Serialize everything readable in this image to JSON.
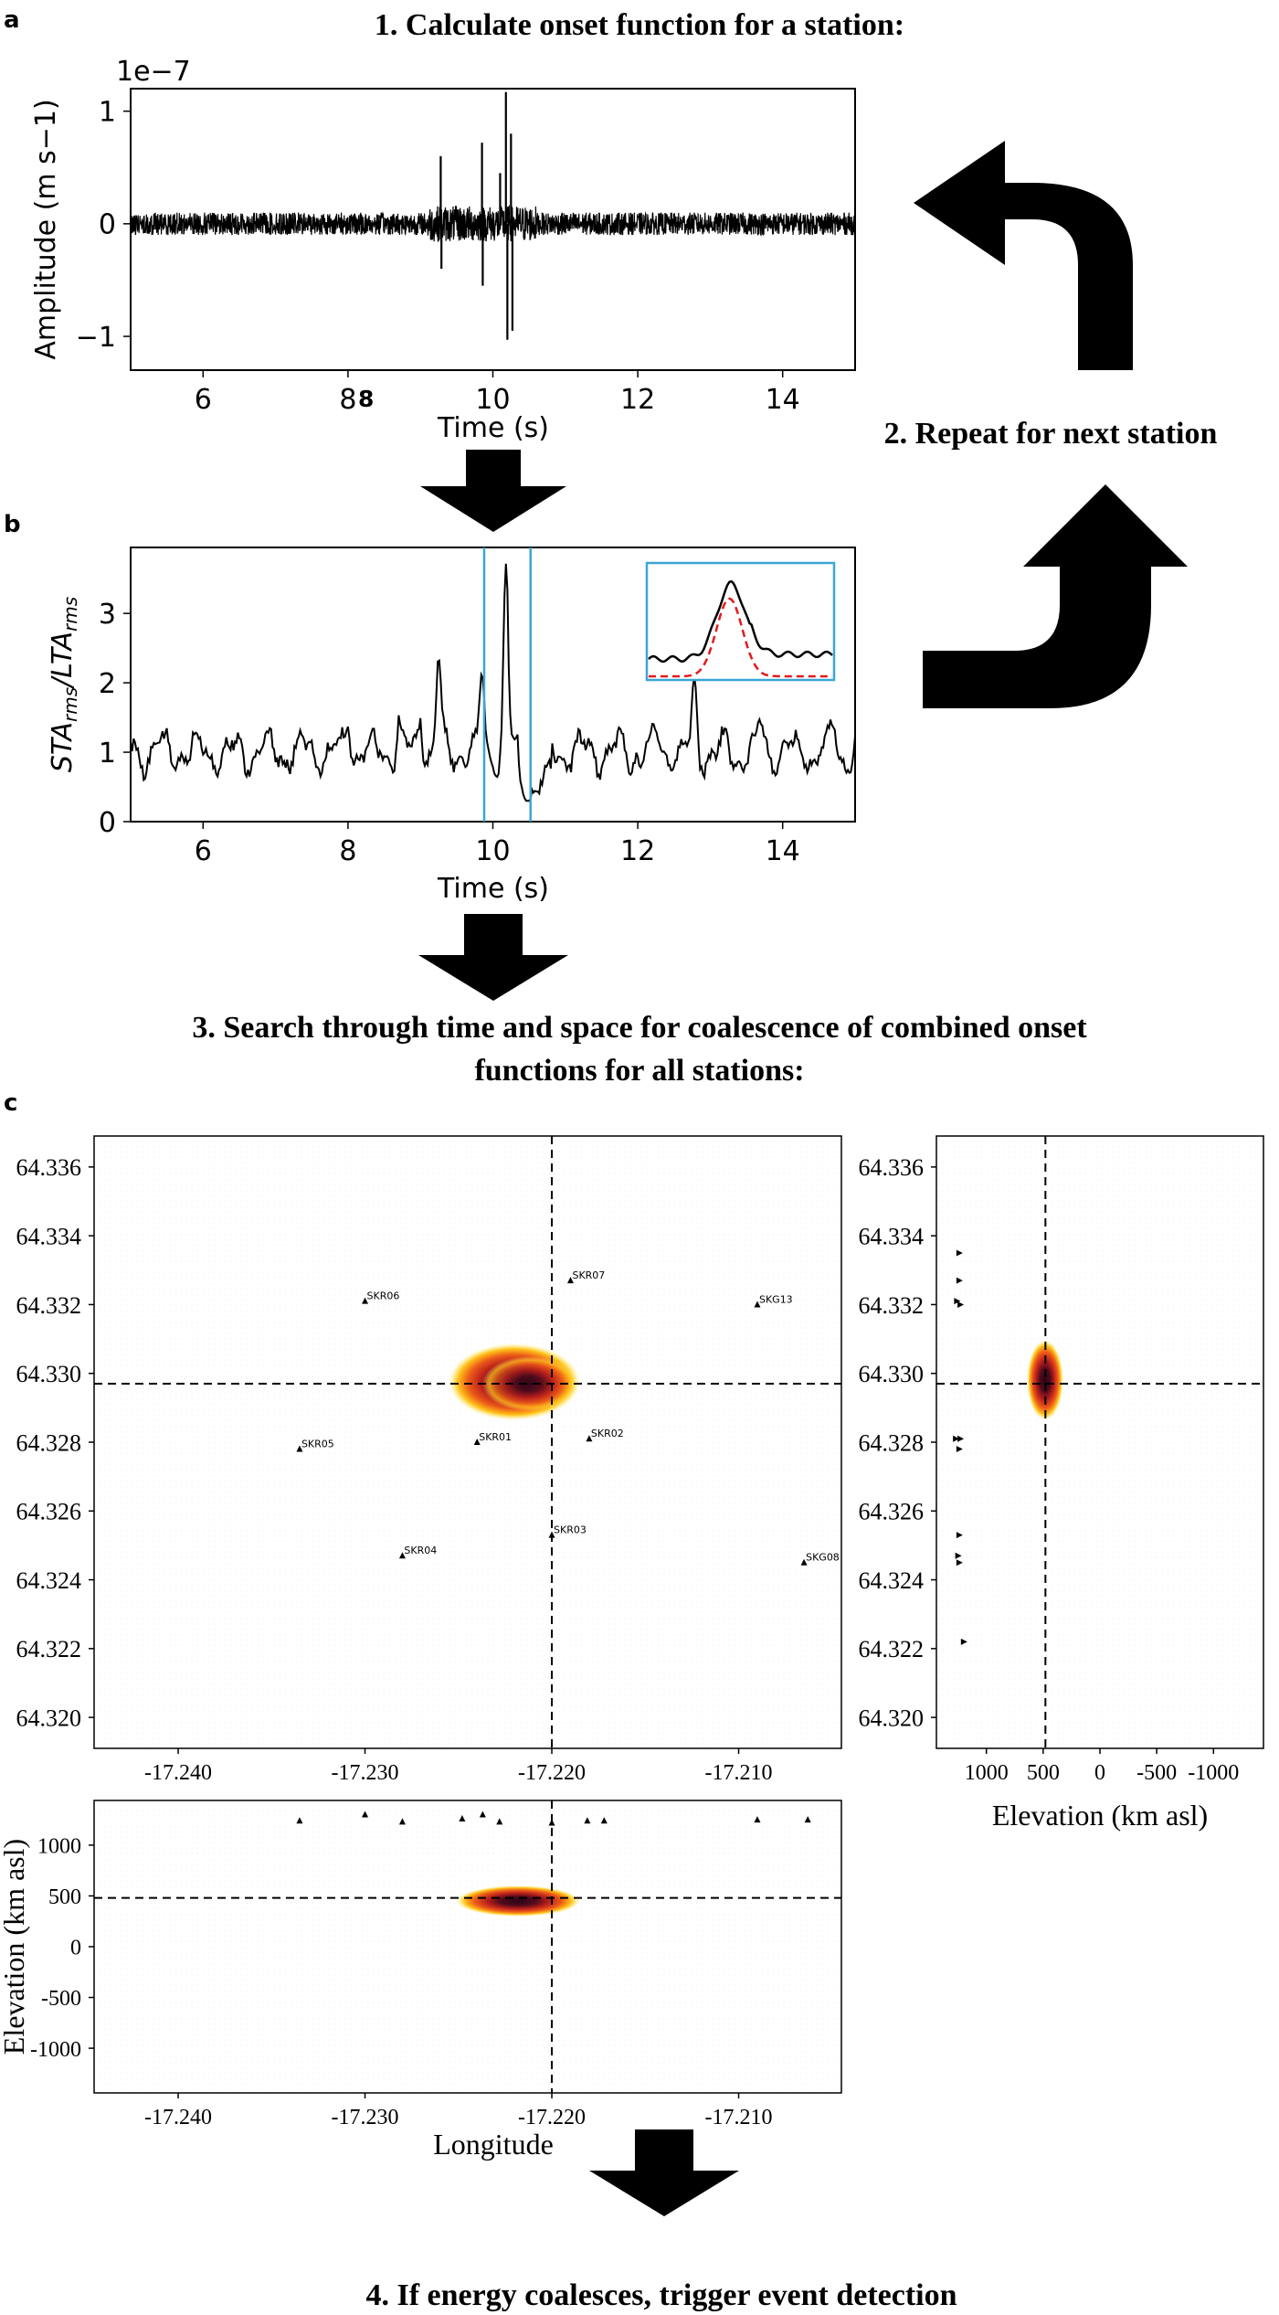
{
  "panel_labels": {
    "a": "a",
    "b": "b",
    "c": "c"
  },
  "steps": {
    "step1": "1.   Calculate onset function for a station:",
    "step2": "2. Repeat for next station",
    "step3_line1": "3. Search through time and space for coalescence of combined onset",
    "step3_line2": "functions for all stations:",
    "step4": "4. If energy coalesces, trigger event detection"
  },
  "colors": {
    "trace": "#000000",
    "window_lines": "#3ba6d6",
    "fit_curve": "#e31a1c",
    "heat_outer": "#ffe419",
    "heat_mid": "#d9341c",
    "heat_core": "#300818",
    "arrows": "#000000"
  },
  "chart_data": [
    {
      "id": "a",
      "type": "line",
      "title": "",
      "xlabel": "Time (s)",
      "ylabel": "Amplitude (m s−1)",
      "scale_label": "1e−7",
      "stray_label": "8",
      "xlim": [
        5,
        15
      ],
      "ylim": [
        -1.3,
        1.2
      ],
      "xticks": [
        "6",
        "8",
        "10",
        "12",
        "14"
      ],
      "xtick_values": [
        6,
        8,
        10,
        12,
        14
      ],
      "yticks": [
        "−1",
        "0",
        "1"
      ],
      "ytick_values": [
        -1,
        0,
        1
      ],
      "noise_amplitude": 0.1,
      "peaks": [
        {
          "x": 9.28,
          "y": 0.6
        },
        {
          "x": 9.29,
          "y": -0.4
        },
        {
          "x": 9.85,
          "y": 0.72
        },
        {
          "x": 9.86,
          "y": -0.55
        },
        {
          "x": 10.1,
          "y": 0.45
        },
        {
          "x": 10.18,
          "y": 1.17
        },
        {
          "x": 10.2,
          "y": -1.03
        },
        {
          "x": 10.25,
          "y": 0.8
        },
        {
          "x": 10.27,
          "y": -0.95
        }
      ]
    },
    {
      "id": "b",
      "type": "line",
      "title": "",
      "xlabel": "Time (s)",
      "ylabel": "STArms/LTArms",
      "xlim": [
        5,
        15
      ],
      "ylim": [
        0,
        3.95
      ],
      "xticks": [
        "6",
        "8",
        "10",
        "12",
        "14"
      ],
      "xtick_values": [
        6,
        8,
        10,
        12,
        14
      ],
      "yticks": [
        "0",
        "1",
        "2",
        "3"
      ],
      "ytick_values": [
        0,
        1,
        2,
        3
      ],
      "baseline": 1.0,
      "peaks": [
        {
          "x": 8.0,
          "y": 1.45
        },
        {
          "x": 8.7,
          "y": 1.4
        },
        {
          "x": 9.0,
          "y": 1.6
        },
        {
          "x": 9.25,
          "y": 2.3
        },
        {
          "x": 9.85,
          "y": 2.05
        },
        {
          "x": 10.18,
          "y": 3.58
        },
        {
          "x": 12.25,
          "y": 1.2
        },
        {
          "x": 12.78,
          "y": 1.92
        },
        {
          "x": 13.7,
          "y": 1.4
        },
        {
          "x": 14.7,
          "y": 1.4
        }
      ],
      "window": [
        9.88,
        10.52
      ],
      "inset": {
        "series": [
          "observed",
          "gaussian fit"
        ]
      }
    },
    {
      "id": "c-map",
      "type": "heatmap",
      "title": "",
      "xlabel": "",
      "ylabel": "",
      "xlim": [
        -17.2445,
        -17.2045
      ],
      "ylim": [
        64.3191,
        64.3369
      ],
      "xticks": [
        "-17.240",
        "-17.230",
        "-17.220",
        "-17.210"
      ],
      "xtick_values": [
        -17.24,
        -17.23,
        -17.22,
        -17.21
      ],
      "yticks": [
        "64.320",
        "64.322",
        "64.324",
        "64.326",
        "64.328",
        "64.330",
        "64.332",
        "64.334",
        "64.336"
      ],
      "ytick_values": [
        64.32,
        64.322,
        64.324,
        64.326,
        64.328,
        64.33,
        64.332,
        64.334,
        64.336
      ],
      "crosshair": {
        "x": -17.22,
        "y": 64.3297
      },
      "stations": [
        {
          "name": "SKR06",
          "lon": -17.23,
          "lat": 64.3321
        },
        {
          "name": "SKR07",
          "lon": -17.219,
          "lat": 64.3327
        },
        {
          "name": "SKG13",
          "lon": -17.209,
          "lat": 64.332
        },
        {
          "name": "SKR05",
          "lon": -17.2335,
          "lat": 64.3278
        },
        {
          "name": "SKR01",
          "lon": -17.224,
          "lat": 64.328
        },
        {
          "name": "SKR02",
          "lon": -17.218,
          "lat": 64.3281
        },
        {
          "name": "SKR03",
          "lon": -17.22,
          "lat": 64.3253
        },
        {
          "name": "SKR04",
          "lon": -17.228,
          "lat": 64.3247
        },
        {
          "name": "SKG08",
          "lon": -17.2065,
          "lat": 64.3245
        }
      ]
    },
    {
      "id": "c-side",
      "type": "heatmap",
      "title": "",
      "xlabel": "Elevation (km asl)",
      "ylabel": "",
      "xlim": [
        1440,
        -1440
      ],
      "ylim": [
        64.3191,
        64.3369
      ],
      "xticks": [
        "1000",
        "500",
        "0",
        "-500",
        "-1000"
      ],
      "xtick_values": [
        1000,
        500,
        0,
        -500,
        -1000
      ],
      "yticks": [
        "64.320",
        "64.322",
        "64.324",
        "64.326",
        "64.328",
        "64.330",
        "64.332",
        "64.334",
        "64.336"
      ],
      "ytick_values": [
        64.32,
        64.322,
        64.324,
        64.326,
        64.328,
        64.33,
        64.332,
        64.334,
        64.336
      ],
      "crosshair": {
        "elev": 480,
        "lat": 64.3297
      },
      "station_markers": [
        {
          "elev": 1240,
          "lat": 64.3335
        },
        {
          "elev": 1240,
          "lat": 64.3327
        },
        {
          "elev": 1260,
          "lat": 64.3321
        },
        {
          "elev": 1230,
          "lat": 64.332
        },
        {
          "elev": 1270,
          "lat": 64.3281
        },
        {
          "elev": 1230,
          "lat": 64.3281
        },
        {
          "elev": 1240,
          "lat": 64.3278
        },
        {
          "elev": 1240,
          "lat": 64.3253
        },
        {
          "elev": 1250,
          "lat": 64.3247
        },
        {
          "elev": 1240,
          "lat": 64.3245
        },
        {
          "elev": 1200,
          "lat": 64.3222
        }
      ]
    },
    {
      "id": "c-bottom",
      "type": "heatmap",
      "title": "",
      "xlabel": "Longitude",
      "ylabel": "Elevation (km asl)",
      "xlim": [
        -17.2445,
        -17.2045
      ],
      "ylim": [
        -1440,
        1440
      ],
      "xticks": [
        "-17.240",
        "-17.230",
        "-17.220",
        "-17.210"
      ],
      "xtick_values": [
        -17.24,
        -17.23,
        -17.22,
        -17.21
      ],
      "yticks": [
        "1000",
        "500",
        "0",
        "-500",
        "-1000"
      ],
      "ytick_values": [
        1000,
        500,
        0,
        -500,
        -1000
      ],
      "crosshair": {
        "x": -17.22,
        "elev": 480
      },
      "station_markers": [
        {
          "lon": -17.2335,
          "elev": 1240
        },
        {
          "lon": -17.23,
          "elev": 1300
        },
        {
          "lon": -17.228,
          "elev": 1230
        },
        {
          "lon": -17.2248,
          "elev": 1260
        },
        {
          "lon": -17.2237,
          "elev": 1300
        },
        {
          "lon": -17.2228,
          "elev": 1230
        },
        {
          "lon": -17.22,
          "elev": 1220
        },
        {
          "lon": -17.2181,
          "elev": 1240
        },
        {
          "lon": -17.2172,
          "elev": 1240
        },
        {
          "lon": -17.209,
          "elev": 1250
        },
        {
          "lon": -17.2063,
          "elev": 1250
        }
      ]
    }
  ]
}
